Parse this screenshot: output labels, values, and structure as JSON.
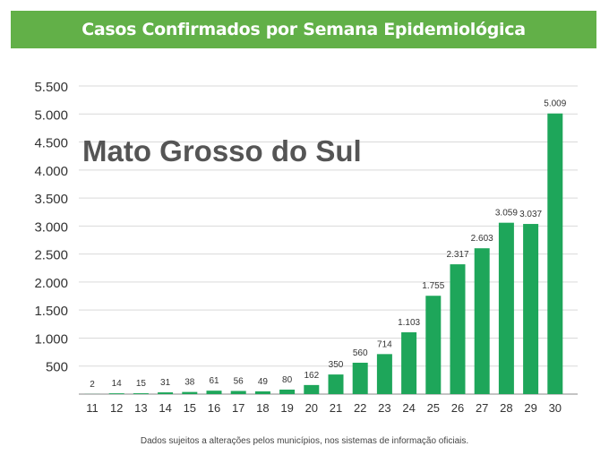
{
  "header": {
    "title": "Casos Confirmados por Semana Epidemiológica"
  },
  "colors": {
    "banner": "#62b048",
    "bar": "#1ea65a",
    "grid": "#d9d9d9"
  },
  "chart_data": {
    "type": "bar",
    "title": "Mato Grosso do Sul",
    "xlabel": "",
    "ylabel": "",
    "categories": [
      "11",
      "12",
      "13",
      "14",
      "15",
      "16",
      "17",
      "18",
      "19",
      "20",
      "21",
      "22",
      "23",
      "24",
      "25",
      "26",
      "27",
      "28",
      "29",
      "30"
    ],
    "values": [
      2,
      14,
      15,
      31,
      38,
      61,
      56,
      49,
      80,
      162,
      350,
      560,
      714,
      1103,
      1755,
      2317,
      2603,
      3059,
      3037,
      5009
    ],
    "value_labels": [
      "2",
      "14",
      "15",
      "31",
      "38",
      "61",
      "56",
      "49",
      "80",
      "162",
      "350",
      "560",
      "714",
      "1.103",
      "1.755",
      "2.317",
      "2.603",
      "3.059",
      "3.037",
      "5.009"
    ],
    "yticks": [
      {
        "value": 500,
        "label": "500"
      },
      {
        "value": 1000,
        "label": "1.000"
      },
      {
        "value": 1500,
        "label": "1.500"
      },
      {
        "value": 2000,
        "label": "2.000"
      },
      {
        "value": 2500,
        "label": "2.500"
      },
      {
        "value": 3000,
        "label": "3.000"
      },
      {
        "value": 3500,
        "label": "3.500"
      },
      {
        "value": 4000,
        "label": "4.000"
      },
      {
        "value": 4500,
        "label": "4.500"
      },
      {
        "value": 5000,
        "label": "5.000"
      },
      {
        "value": 5500,
        "label": "5.500"
      }
    ],
    "ylim": [
      0,
      5500
    ],
    "grid": true,
    "legend": "none"
  },
  "footnote": "Dados sujeitos a alterações pelos municípios, nos sistemas de informação oficiais."
}
